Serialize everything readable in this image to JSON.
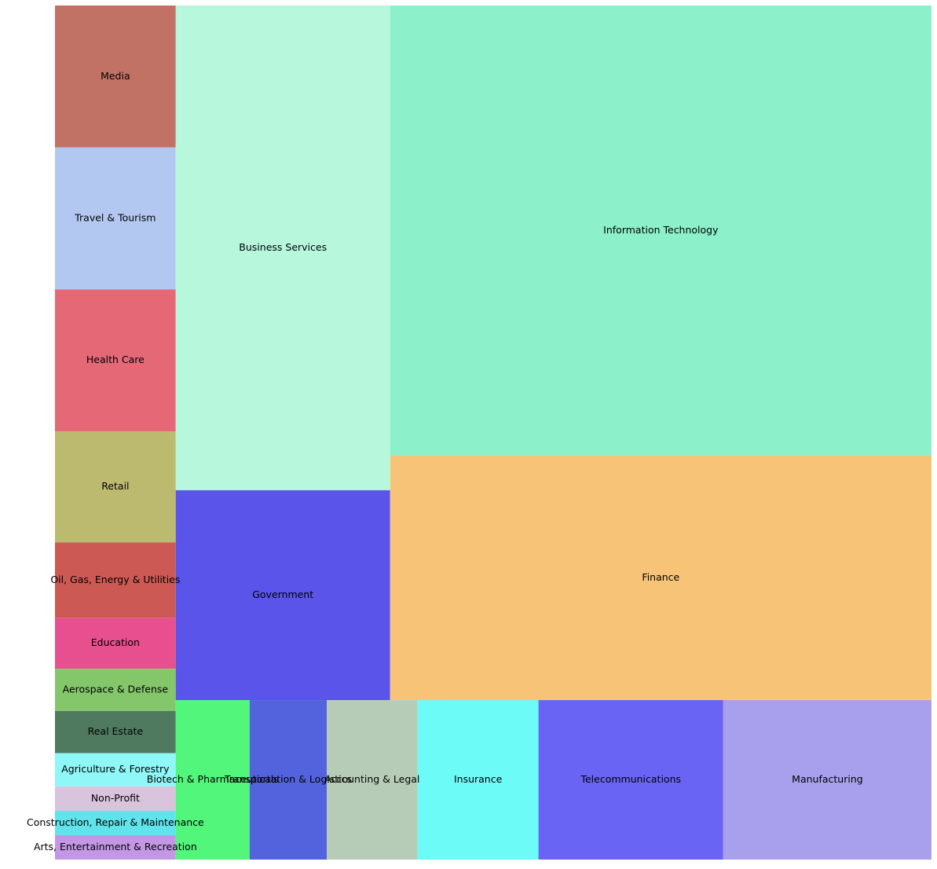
{
  "chart_data": {
    "type": "treemap",
    "title": "",
    "items": [
      {
        "label": "Media",
        "value": 32,
        "color": "#c27265"
      },
      {
        "label": "Travel & Tourism",
        "value": 32,
        "color": "#b3c8f0"
      },
      {
        "label": "Health Care",
        "value": 32,
        "color": "#e56877"
      },
      {
        "label": "Retail",
        "value": 25,
        "color": "#bcba6f"
      },
      {
        "label": "Oil, Gas, Energy & Utilities",
        "value": 17,
        "color": "#cd5955"
      },
      {
        "label": "Education",
        "value": 11.5,
        "color": "#e74f8e"
      },
      {
        "label": "Aerospace & Defense",
        "value": 9.5,
        "color": "#84c76b"
      },
      {
        "label": "Real Estate",
        "value": 9.5,
        "color": "#4f7a5f"
      },
      {
        "label": "Agriculture & Forestry",
        "value": 7.5,
        "color": "#8ff7f7"
      },
      {
        "label": "Non-Profit",
        "value": 5.5,
        "color": "#d8c4dc"
      },
      {
        "label": "Construction, Repair & Maintenance",
        "value": 5.5,
        "color": "#60e4ec"
      },
      {
        "label": "Arts, Entertainment & Recreation",
        "value": 5.5,
        "color": "#c397e6"
      },
      {
        "label": "Business Services",
        "value": 194,
        "color": "#b7f8dd"
      },
      {
        "label": "Government",
        "value": 84,
        "color": "#5a54ea"
      },
      {
        "label": "Information Technology",
        "value": 455,
        "color": "#8cf0ca"
      },
      {
        "label": "Finance",
        "value": 247,
        "color": "#f7c477"
      },
      {
        "label": "Biotech & Pharmaceuticals",
        "value": 22,
        "color": "#51f67b"
      },
      {
        "label": "Transportation & Logistics",
        "value": 23,
        "color": "#5363dd"
      },
      {
        "label": "Accounting & Legal",
        "value": 27,
        "color": "#b7ccb7"
      },
      {
        "label": "Insurance",
        "value": 36,
        "color": "#6dfbf8"
      },
      {
        "label": "Telecommunications",
        "value": 55,
        "color": "#6a64f4"
      },
      {
        "label": "Manufacturing",
        "value": 62,
        "color": "#a8a0ec"
      }
    ]
  }
}
